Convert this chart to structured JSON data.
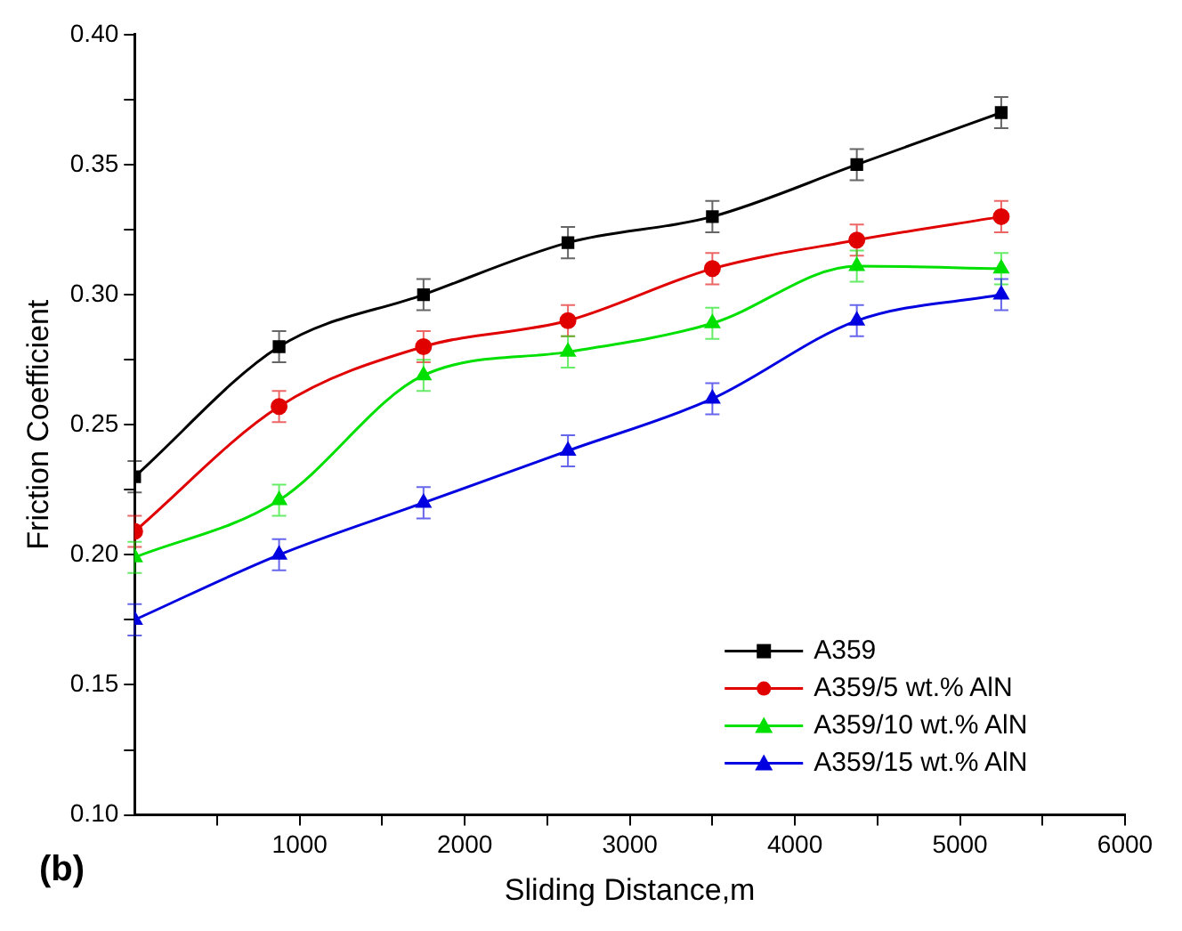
{
  "chart_data": {
    "type": "line",
    "xlabel": "Sliding Distance,m",
    "ylabel": "Friction Coefficient",
    "annotations": [
      "(b)"
    ],
    "x": [
      0,
      875,
      1750,
      2625,
      3500,
      4375,
      5250
    ],
    "xlim": [
      0,
      6000
    ],
    "xticks": [
      {
        "value": 500,
        "label": null
      },
      1000,
      {
        "value": 1500,
        "label": null
      },
      2000,
      {
        "value": 2500,
        "label": null
      },
      3000,
      {
        "value": 3500,
        "label": null
      },
      4000,
      {
        "value": 4500,
        "label": null
      },
      5000,
      {
        "value": 5500,
        "label": null
      },
      6000
    ],
    "ylim": [
      0.1,
      0.4
    ],
    "yticks": [
      {
        "value": 0.1,
        "label": "0.10"
      },
      {
        "value": 0.125,
        "label": null
      },
      {
        "value": 0.15,
        "label": "0.15"
      },
      {
        "value": 0.175,
        "label": null
      },
      {
        "value": 0.2,
        "label": "0.20"
      },
      {
        "value": 0.225,
        "label": null
      },
      {
        "value": 0.25,
        "label": "0.25"
      },
      {
        "value": 0.275,
        "label": null
      },
      {
        "value": 0.3,
        "label": "0.30"
      },
      {
        "value": 0.325,
        "label": null
      },
      {
        "value": 0.35,
        "label": "0.35"
      },
      {
        "value": 0.375,
        "label": null
      },
      {
        "value": 0.4,
        "label": "0.40"
      }
    ],
    "grid": false,
    "legend": "bottom right",
    "line_style": "solid",
    "series": [
      {
        "name": "A359",
        "color": "#000000",
        "marker": "square",
        "values": [
          0.23,
          0.28,
          0.3,
          0.32,
          0.33,
          0.35,
          0.37
        ],
        "errors": [
          0.006,
          0.006,
          0.006,
          0.006,
          0.006,
          0.006,
          0.006
        ]
      },
      {
        "name": "A359/5 wt.% AlN",
        "color": "#e00000",
        "marker": "circle",
        "values": [
          0.209,
          0.257,
          0.28,
          0.29,
          0.31,
          0.321,
          0.33
        ],
        "errors": [
          0.006,
          0.006,
          0.006,
          0.006,
          0.006,
          0.006,
          0.006
        ]
      },
      {
        "name": "A359/10 wt.% AlN",
        "color": "#00e000",
        "marker": "triangle",
        "values": [
          0.199,
          0.221,
          0.269,
          0.278,
          0.289,
          0.311,
          0.31
        ],
        "errors": [
          0.006,
          0.006,
          0.006,
          0.006,
          0.006,
          0.006,
          0.006
        ]
      },
      {
        "name": "A359/15 wt.% AlN",
        "color": "#0000e0",
        "marker": "triangle",
        "values": [
          0.175,
          0.2,
          0.22,
          0.24,
          0.26,
          0.29,
          0.3
        ],
        "errors": [
          0.006,
          0.006,
          0.006,
          0.006,
          0.006,
          0.006,
          0.006
        ]
      }
    ]
  }
}
